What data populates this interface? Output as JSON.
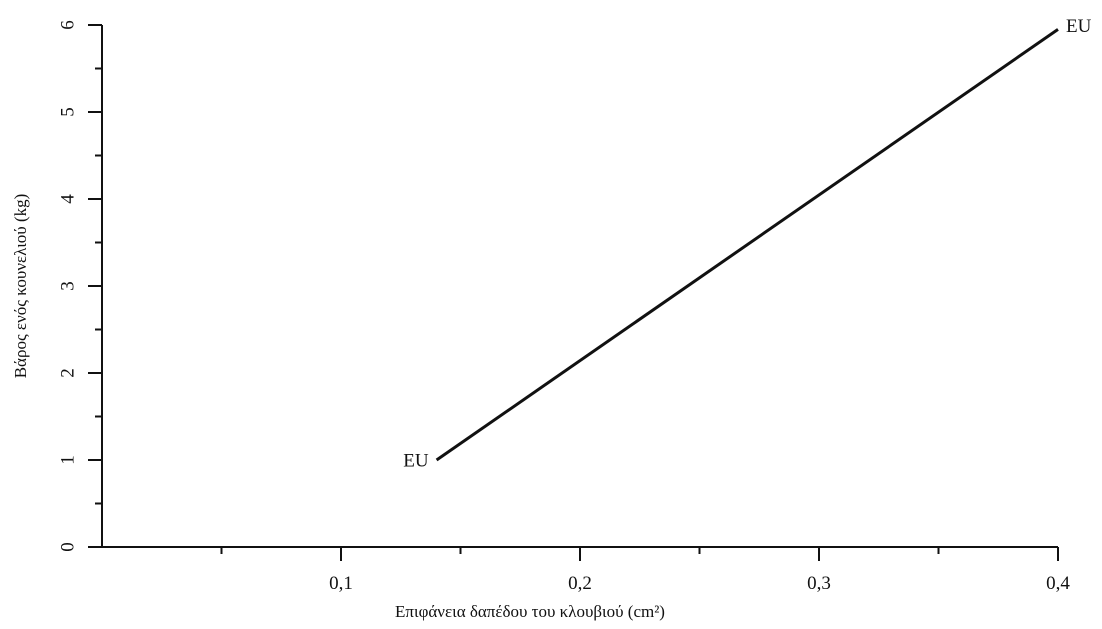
{
  "chart_data": {
    "type": "line",
    "title": "",
    "xlabel": "Επιφάνεια δαπέδου του κλουβιού (cm²)",
    "ylabel": "Βάρος ενός κουνελιού (kg)",
    "xlim": [
      0,
      0.4
    ],
    "ylim": [
      0,
      6
    ],
    "x_tick_labels": [
      "0,1",
      "0,2",
      "0,3",
      "0,4"
    ],
    "x_tick_values": [
      0.1,
      0.2,
      0.3,
      0.4
    ],
    "x_minor_ticks": [
      0.05,
      0.15,
      0.25,
      0.35
    ],
    "y_tick_labels": [
      "0",
      "1",
      "2",
      "3",
      "4",
      "5",
      "6"
    ],
    "y_tick_values": [
      0,
      1,
      2,
      3,
      4,
      5,
      6
    ],
    "y_minor_ticks": [
      0.5,
      1.5,
      2.5,
      3.5,
      4.5,
      5.5
    ],
    "grid": false,
    "series": [
      {
        "x": [
          0.14,
          0.4
        ],
        "y": [
          1,
          5.95
        ],
        "start_label": "EU",
        "end_label": "EU"
      }
    ]
  }
}
